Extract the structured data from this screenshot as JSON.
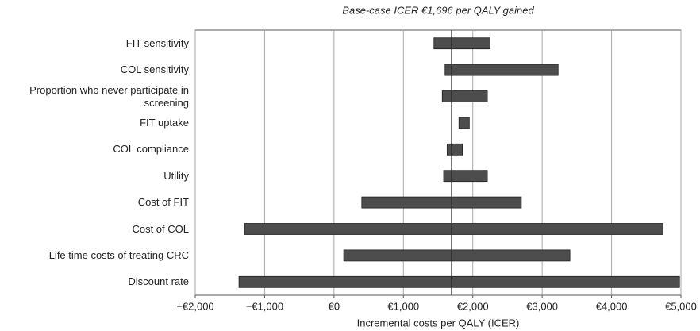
{
  "chart_data": {
    "type": "tornado",
    "title": "Base-case ICER €1,696 per QALY gained",
    "base_case": 1696,
    "x_label": "Incremental costs per QALY (ICER)",
    "categories": [
      "FIT sensitivity",
      "COL sensitivity",
      "Proportion who never participate in screening",
      "FIT uptake",
      "COL compliance",
      "Utility",
      "Cost of FIT",
      "Cost of COL",
      "Life time costs of treating CRC",
      "Discount rate"
    ],
    "low": [
      1440,
      1600,
      1560,
      1800,
      1630,
      1580,
      400,
      -1290,
      140,
      -1370
    ],
    "high": [
      2250,
      3230,
      2210,
      1950,
      1850,
      2210,
      2700,
      4740,
      3400,
      4980
    ],
    "color": "#4d4d4d",
    "xlim": [
      -2000,
      5000
    ],
    "xticks": [
      {
        "value": -2000,
        "label": "−€2,000"
      },
      {
        "value": -1000,
        "label": "−€1,000"
      },
      {
        "value": 0,
        "label": "€0"
      },
      {
        "value": 1000,
        "label": "€1,000"
      },
      {
        "value": 2000,
        "label": "€2,000"
      },
      {
        "value": 3000,
        "label": "€3,000"
      },
      {
        "value": 4000,
        "label": "€4,000"
      },
      {
        "value": 5000,
        "label": "€5,000"
      }
    ],
    "grid": true
  }
}
